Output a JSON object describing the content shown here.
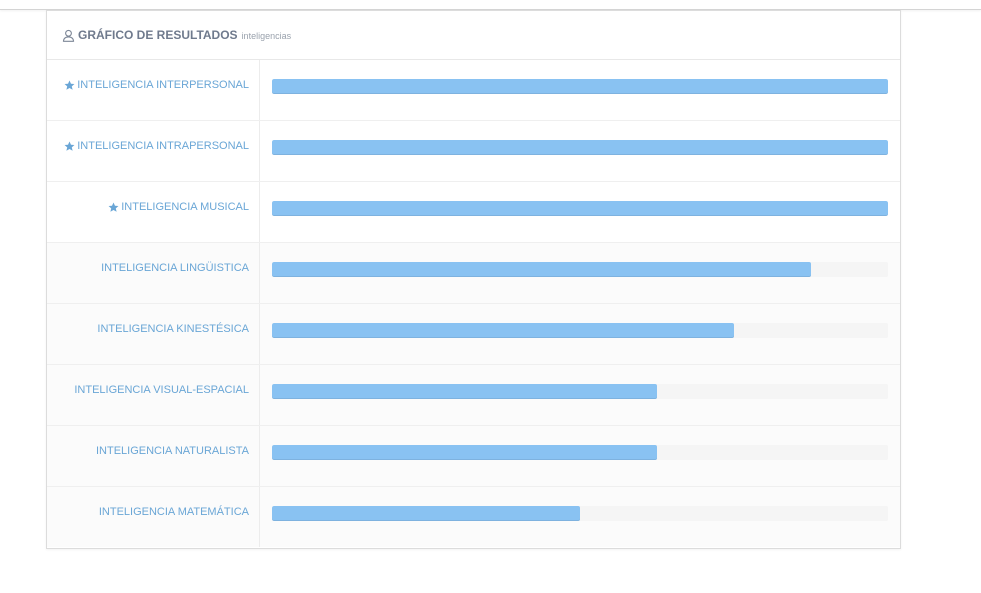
{
  "panel": {
    "title": "GRÁFICO DE RESULTADOS",
    "subtitle": "inteligencias",
    "header_icon": "user-icon"
  },
  "colors": {
    "bar_fill": "#89c2f2",
    "bar_track": "#f5f5f5",
    "label": "#6aa6d6",
    "title": "#6f7a8d"
  },
  "chart_data": {
    "type": "bar",
    "orientation": "horizontal",
    "title": "GRÁFICO DE RESULTADOS",
    "subtitle": "inteligencias",
    "xlim": [
      0,
      100
    ],
    "unit": "percent",
    "categories": [
      "INTELIGENCIA INTERPERSONAL",
      "INTELIGENCIA INTRAPERSONAL",
      "INTELIGENCIA MUSICAL",
      "INTELIGENCIA LINGÜISTICA",
      "INTELIGENCIA KINESTÉSICA",
      "INTELIGENCIA VISUAL-ESPACIAL",
      "INTELIGENCIA NATURALISTA",
      "INTELIGENCIA MATEMÁTICA"
    ],
    "values": [
      100,
      100,
      100,
      87.5,
      75,
      62.5,
      62.5,
      50
    ],
    "starred": [
      true,
      true,
      true,
      false,
      false,
      false,
      false,
      false
    ],
    "star_icon": "star-icon"
  }
}
